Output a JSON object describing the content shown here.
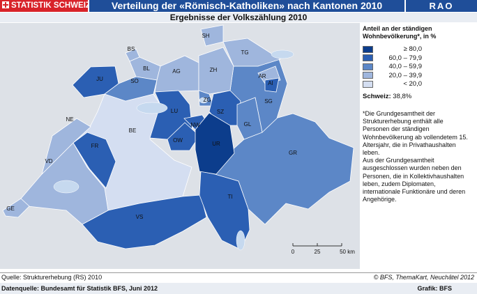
{
  "header": {
    "logo": "STATISTIK SCHWEIZ",
    "title": "Verteilung der «Römisch-Katholiken» nach Kantonen 2010",
    "region": "RAO",
    "subtitle": "Ergebnisse der Volkszählung 2010"
  },
  "legend": {
    "title": "Anteil an der ständigen Wohnbevölkerung*, in %",
    "items": [
      {
        "label": "≥ 80,0",
        "color": "#0c3d8c"
      },
      {
        "label": "60,0 – 79,9",
        "color": "#2b5fb3"
      },
      {
        "label": "40,0 – 59,9",
        "color": "#5c87c7"
      },
      {
        "label": "20,0 – 39,9",
        "color": "#9fb6dd"
      },
      {
        "label": "< 20,0",
        "color": "#d4def1"
      }
    ],
    "total_label": "Schweiz:",
    "total_value": "38,8%"
  },
  "note": [
    "*Die Grundgesamtheit der Strukturerhebung enthält alle Personen der ständigen Wohnbevölkerung ab vollendetem 15. Altersjahr, die in Privathaushalten leben.",
    "Aus der Grundgesamtheit ausgeschlossen wurden neben den Personen, die in Kollektivhaushalten leben, zudem Diplomaten, internationale Funktionäre und deren Angehörige."
  ],
  "cantons": [
    {
      "label": "BE",
      "color": "#d4def1"
    },
    {
      "label": "GR",
      "color": "#5c87c7"
    },
    {
      "label": "VS",
      "color": "#2b5fb3"
    },
    {
      "label": "VD",
      "color": "#9fb6dd"
    },
    {
      "label": "TI",
      "color": "#2b5fb3"
    },
    {
      "label": "SG",
      "color": "#5c87c7"
    },
    {
      "label": "FR",
      "color": "#2b5fb3"
    },
    {
      "label": "NE",
      "color": "#9fb6dd"
    },
    {
      "label": "GE",
      "color": "#9fb6dd"
    },
    {
      "label": "JU",
      "color": "#2b5fb3"
    },
    {
      "label": "BS",
      "color": "#9fb6dd"
    },
    {
      "label": "BL",
      "color": "#9fb6dd"
    },
    {
      "label": "SO",
      "color": "#5c87c7"
    },
    {
      "label": "AG",
      "color": "#9fb6dd"
    },
    {
      "label": "LU",
      "color": "#2b5fb3"
    },
    {
      "label": "ZH",
      "color": "#9fb6dd"
    },
    {
      "label": "SH",
      "color": "#9fb6dd"
    },
    {
      "label": "TG",
      "color": "#9fb6dd"
    },
    {
      "label": "ZG",
      "color": "#5c87c7"
    },
    {
      "label": "SZ",
      "color": "#2b5fb3"
    },
    {
      "label": "NW",
      "color": "#2b5fb3"
    },
    {
      "label": "OW",
      "color": "#2b5fb3"
    },
    {
      "label": "UR",
      "color": "#0c3d8c"
    },
    {
      "label": "GL",
      "color": "#5c87c7"
    },
    {
      "label": "AR",
      "color": "#9fb6dd"
    },
    {
      "label": "AI",
      "color": "#2b5fb3"
    }
  ],
  "scale": {
    "labels": [
      "0",
      "25",
      "50 km"
    ]
  },
  "footer": {
    "source": "Quelle: Strukturerhebung (RS) 2010",
    "copyright": "© BFS, ThemaKart, Neuchâtel 2012",
    "data_source": "Datenquelle: Bundesamt für Statistik BFS, Juni 2012",
    "graphic": "Grafik: BFS"
  }
}
